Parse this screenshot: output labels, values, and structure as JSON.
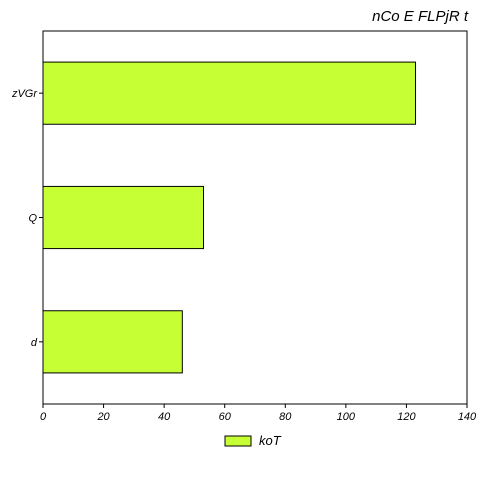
{
  "chart_data": {
    "type": "bar",
    "orientation": "horizontal",
    "title": "nCo E FLPjR t",
    "categories": [
      "zVGr",
      "Q",
      "d"
    ],
    "series": [
      {
        "name": "koT",
        "values": [
          123,
          53,
          46
        ],
        "color": "#c6ff33"
      }
    ],
    "xlim": [
      0,
      140
    ],
    "xticks": [
      0,
      20,
      40,
      60,
      80,
      100,
      120,
      140
    ],
    "grid": false,
    "legend_position": "bottom-center"
  }
}
